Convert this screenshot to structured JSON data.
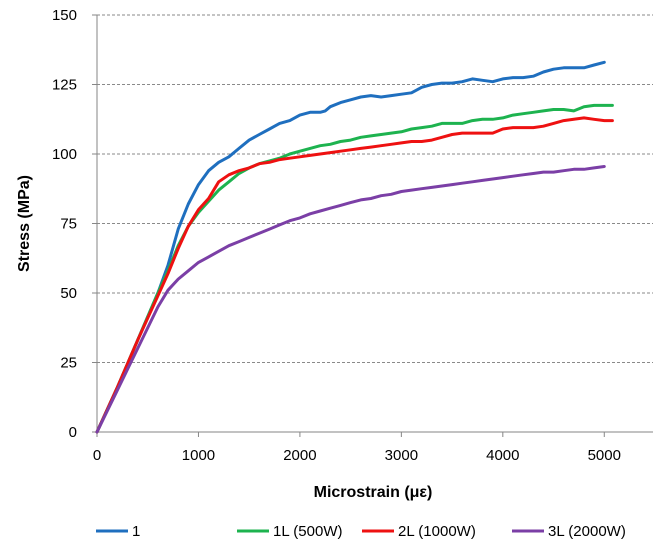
{
  "chart_data": {
    "type": "line",
    "title": "",
    "xlabel": "Microstrain (με)",
    "ylabel": "Stress (MPa)",
    "xlim": [
      0,
      5500
    ],
    "ylim": [
      0,
      150
    ],
    "xticks": [
      0,
      1000,
      2000,
      3000,
      4000,
      5000
    ],
    "yticks": [
      0,
      25,
      50,
      75,
      100,
      125,
      150
    ],
    "grid": "horizontal dashed",
    "legend": "bottom",
    "series": [
      {
        "name": "1",
        "color": "#1F6FBF",
        "points": [
          [
            0,
            0
          ],
          [
            200,
            16
          ],
          [
            400,
            33
          ],
          [
            600,
            50
          ],
          [
            700,
            60
          ],
          [
            800,
            73
          ],
          [
            900,
            82
          ],
          [
            1000,
            89
          ],
          [
            1100,
            94
          ],
          [
            1200,
            97
          ],
          [
            1300,
            99
          ],
          [
            1400,
            102
          ],
          [
            1500,
            105
          ],
          [
            1600,
            107
          ],
          [
            1700,
            109
          ],
          [
            1800,
            111
          ],
          [
            1900,
            112
          ],
          [
            2000,
            114
          ],
          [
            2100,
            115
          ],
          [
            2200,
            115
          ],
          [
            2250,
            115.5
          ],
          [
            2300,
            117
          ],
          [
            2400,
            118.5
          ],
          [
            2500,
            119.5
          ],
          [
            2600,
            120.5
          ],
          [
            2700,
            121
          ],
          [
            2800,
            120.5
          ],
          [
            2900,
            121
          ],
          [
            3000,
            121.5
          ],
          [
            3100,
            122
          ],
          [
            3200,
            124
          ],
          [
            3300,
            125
          ],
          [
            3400,
            125.5
          ],
          [
            3500,
            125.5
          ],
          [
            3600,
            126
          ],
          [
            3700,
            127
          ],
          [
            3800,
            126.5
          ],
          [
            3900,
            126
          ],
          [
            4000,
            127
          ],
          [
            4100,
            127.5
          ],
          [
            4200,
            127.5
          ],
          [
            4300,
            128
          ],
          [
            4400,
            129.5
          ],
          [
            4500,
            130.5
          ],
          [
            4600,
            131
          ],
          [
            4700,
            131
          ],
          [
            4800,
            131
          ],
          [
            4900,
            132
          ],
          [
            5000,
            133
          ]
        ]
      },
      {
        "name": "1L (500W)",
        "color": "#1DB34F",
        "points": [
          [
            0,
            0
          ],
          [
            200,
            16
          ],
          [
            400,
            33
          ],
          [
            600,
            50
          ],
          [
            700,
            58
          ],
          [
            800,
            67
          ],
          [
            900,
            74
          ],
          [
            1000,
            79
          ],
          [
            1100,
            83
          ],
          [
            1200,
            87
          ],
          [
            1300,
            90
          ],
          [
            1400,
            93
          ],
          [
            1500,
            95
          ],
          [
            1600,
            96.5
          ],
          [
            1700,
            97.5
          ],
          [
            1800,
            98.5
          ],
          [
            1900,
            100
          ],
          [
            2000,
            101
          ],
          [
            2100,
            102
          ],
          [
            2200,
            103
          ],
          [
            2300,
            103.5
          ],
          [
            2400,
            104.5
          ],
          [
            2500,
            105
          ],
          [
            2600,
            106
          ],
          [
            2700,
            106.5
          ],
          [
            2800,
            107
          ],
          [
            2900,
            107.5
          ],
          [
            3000,
            108
          ],
          [
            3100,
            109
          ],
          [
            3200,
            109.5
          ],
          [
            3300,
            110
          ],
          [
            3400,
            111
          ],
          [
            3500,
            111
          ],
          [
            3600,
            111
          ],
          [
            3700,
            112
          ],
          [
            3800,
            112.5
          ],
          [
            3900,
            112.5
          ],
          [
            4000,
            113
          ],
          [
            4100,
            114
          ],
          [
            4200,
            114.5
          ],
          [
            4300,
            115
          ],
          [
            4400,
            115.5
          ],
          [
            4500,
            116
          ],
          [
            4600,
            116
          ],
          [
            4700,
            115.5
          ],
          [
            4800,
            117
          ],
          [
            4900,
            117.5
          ],
          [
            5000,
            117.5
          ],
          [
            5080,
            117.5
          ]
        ]
      },
      {
        "name": "2L (1000W)",
        "color": "#EE1111",
        "points": [
          [
            0,
            0
          ],
          [
            200,
            16
          ],
          [
            400,
            33
          ],
          [
            600,
            49
          ],
          [
            700,
            57
          ],
          [
            800,
            66
          ],
          [
            900,
            74
          ],
          [
            1000,
            80
          ],
          [
            1100,
            84
          ],
          [
            1200,
            90
          ],
          [
            1300,
            92.5
          ],
          [
            1400,
            94
          ],
          [
            1500,
            95
          ],
          [
            1600,
            96.5
          ],
          [
            1700,
            97
          ],
          [
            1800,
            98
          ],
          [
            1900,
            98.5
          ],
          [
            2000,
            99
          ],
          [
            2100,
            99.5
          ],
          [
            2200,
            100
          ],
          [
            2300,
            100.5
          ],
          [
            2400,
            101
          ],
          [
            2500,
            101.5
          ],
          [
            2600,
            102
          ],
          [
            2700,
            102.5
          ],
          [
            2800,
            103
          ],
          [
            2900,
            103.5
          ],
          [
            3000,
            104
          ],
          [
            3100,
            104.5
          ],
          [
            3200,
            104.5
          ],
          [
            3300,
            105
          ],
          [
            3400,
            106
          ],
          [
            3500,
            107
          ],
          [
            3600,
            107.5
          ],
          [
            3700,
            107.5
          ],
          [
            3800,
            107.5
          ],
          [
            3900,
            107.5
          ],
          [
            4000,
            109
          ],
          [
            4100,
            109.5
          ],
          [
            4200,
            109.5
          ],
          [
            4300,
            109.5
          ],
          [
            4400,
            110
          ],
          [
            4500,
            111
          ],
          [
            4600,
            112
          ],
          [
            4700,
            112.5
          ],
          [
            4800,
            113
          ],
          [
            4900,
            112.5
          ],
          [
            5000,
            112
          ],
          [
            5080,
            112
          ]
        ]
      },
      {
        "name": "3L (2000W)",
        "color": "#7B3FA6",
        "points": [
          [
            0,
            0
          ],
          [
            200,
            15
          ],
          [
            400,
            30
          ],
          [
            600,
            45
          ],
          [
            700,
            51
          ],
          [
            800,
            55
          ],
          [
            900,
            58
          ],
          [
            1000,
            61
          ],
          [
            1100,
            63
          ],
          [
            1200,
            65
          ],
          [
            1300,
            67
          ],
          [
            1400,
            68.5
          ],
          [
            1500,
            70
          ],
          [
            1600,
            71.5
          ],
          [
            1700,
            73
          ],
          [
            1800,
            74.5
          ],
          [
            1900,
            76
          ],
          [
            2000,
            77
          ],
          [
            2100,
            78.5
          ],
          [
            2200,
            79.5
          ],
          [
            2300,
            80.5
          ],
          [
            2400,
            81.5
          ],
          [
            2500,
            82.5
          ],
          [
            2600,
            83.5
          ],
          [
            2700,
            84
          ],
          [
            2800,
            85
          ],
          [
            2900,
            85.5
          ],
          [
            3000,
            86.5
          ],
          [
            3100,
            87
          ],
          [
            3200,
            87.5
          ],
          [
            3300,
            88
          ],
          [
            3400,
            88.5
          ],
          [
            3500,
            89
          ],
          [
            3600,
            89.5
          ],
          [
            3700,
            90
          ],
          [
            3800,
            90.5
          ],
          [
            3900,
            91
          ],
          [
            4000,
            91.5
          ],
          [
            4100,
            92
          ],
          [
            4200,
            92.5
          ],
          [
            4300,
            93
          ],
          [
            4400,
            93.5
          ],
          [
            4500,
            93.5
          ],
          [
            4600,
            94
          ],
          [
            4700,
            94.5
          ],
          [
            4800,
            94.5
          ],
          [
            4900,
            95
          ],
          [
            5000,
            95.5
          ]
        ]
      }
    ]
  }
}
